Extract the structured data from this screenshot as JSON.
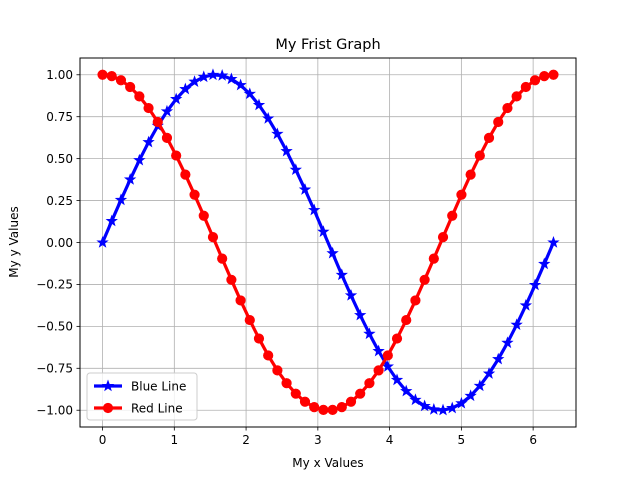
{
  "chart_data": {
    "type": "line",
    "title": "My Frist Graph",
    "xlabel": "My x Values",
    "ylabel": "My y Values",
    "xlim": [
      -0.3142,
      6.5973
    ],
    "ylim": [
      -1.1,
      1.1
    ],
    "xticks": [
      0,
      1,
      2,
      3,
      4,
      5,
      6
    ],
    "yticks": [
      -1.0,
      -0.75,
      -0.5,
      -0.25,
      0.0,
      0.25,
      0.5,
      0.75,
      1.0
    ],
    "ytick_labels": [
      "−1.00",
      "−0.75",
      "−0.50",
      "−0.25",
      "0.00",
      "0.25",
      "0.50",
      "0.75",
      "1.00"
    ],
    "xtick_labels": [
      "0",
      "1",
      "2",
      "3",
      "4",
      "5",
      "6"
    ],
    "grid": true,
    "legend_position": "lower-left",
    "x": [
      0.0,
      0.1282,
      0.2565,
      0.3847,
      0.5129,
      0.6411,
      0.7694,
      0.8976,
      1.0258,
      1.154,
      1.2823,
      1.4105,
      1.5387,
      1.6669,
      1.7952,
      1.9234,
      2.0516,
      2.1799,
      2.3081,
      2.4363,
      2.5645,
      2.6928,
      2.821,
      2.9492,
      3.0774,
      3.2057,
      3.3339,
      3.4621,
      3.5903,
      3.7186,
      3.8468,
      3.975,
      4.1033,
      4.2315,
      4.3597,
      4.4879,
      4.6162,
      4.7444,
      4.8726,
      5.0008,
      5.1291,
      5.2573,
      5.3855,
      5.5137,
      5.642,
      5.7702,
      5.8984,
      6.0266,
      6.1549,
      6.2832
    ],
    "series": [
      {
        "name": "Blue Line",
        "color": "#0000ff",
        "marker": "star",
        "values": [
          0.0,
          0.1279,
          0.2537,
          0.3753,
          0.4907,
          0.5981,
          0.6956,
          0.7818,
          0.8551,
          0.9144,
          0.9587,
          0.9872,
          0.9995,
          0.9954,
          0.9749,
          0.9383,
          0.8862,
          0.8196,
          0.7394,
          0.6473,
          0.5446,
          0.4334,
          0.3155,
          0.1931,
          0.0641,
          -0.0641,
          -0.1931,
          -0.3155,
          -0.4334,
          -0.5446,
          -0.6473,
          -0.7394,
          -0.8196,
          -0.8862,
          -0.9383,
          -0.9749,
          -0.9954,
          -0.9995,
          -0.9872,
          -0.9587,
          -0.9144,
          -0.8551,
          -0.7818,
          -0.6956,
          -0.5981,
          -0.4907,
          -0.3753,
          -0.2537,
          -0.1279,
          0.0
        ]
      },
      {
        "name": "Red Line",
        "color": "#ff0000",
        "marker": "circle",
        "values": [
          1.0,
          0.9918,
          0.9673,
          0.9269,
          0.8713,
          0.8016,
          0.7186,
          0.6236,
          0.5183,
          0.4048,
          0.2845,
          0.1596,
          0.0321,
          -0.096,
          -0.2224,
          -0.3453,
          -0.4625,
          -0.5727,
          -0.6734,
          -0.7624,
          -0.8388,
          -0.9013,
          -0.9495,
          -0.9813,
          -0.9979,
          -0.9979,
          -0.9813,
          -0.9495,
          -0.9013,
          -0.8388,
          -0.7624,
          -0.6734,
          -0.5727,
          -0.4625,
          -0.3453,
          -0.2224,
          -0.096,
          0.0321,
          0.1596,
          0.2845,
          0.4048,
          0.5183,
          0.6236,
          0.7186,
          0.8016,
          0.8713,
          0.9269,
          0.9673,
          0.9918,
          1.0
        ]
      }
    ]
  }
}
